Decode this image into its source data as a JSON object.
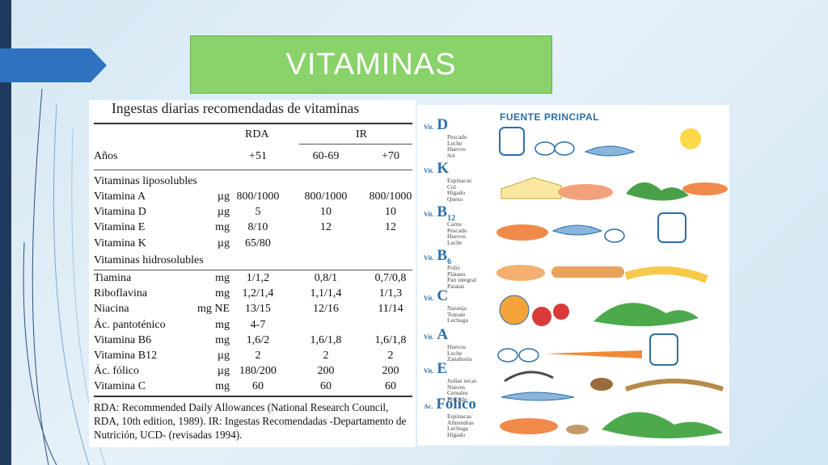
{
  "slide": {
    "title": "VITAMINAS"
  },
  "table": {
    "title": "Ingestas diarias recomendadas de vitaminas",
    "headers": {
      "rda": "RDA",
      "ir": "IR"
    },
    "age_row": {
      "label": "Años",
      "rda": "+51",
      "ir1": "60-69",
      "ir2": "+70"
    },
    "section_lipo": "Vitaminas liposolubles",
    "section_hidro": "Vitaminas hidrosolubles",
    "lipo_rows": [
      {
        "name": "Vitamina A",
        "unit": "µg",
        "rda": "800/1000",
        "ir1": "800/1000",
        "ir2": "800/1000"
      },
      {
        "name": "Vitamina D",
        "unit": "µg",
        "rda": "5",
        "ir1": "10",
        "ir2": "10"
      },
      {
        "name": "Vitamina E",
        "unit": "mg",
        "rda": "8/10",
        "ir1": "12",
        "ir2": "12"
      },
      {
        "name": "Vitamina K",
        "unit": "µg",
        "rda": "65/80",
        "ir1": "",
        "ir2": ""
      }
    ],
    "hidro_rows": [
      {
        "name": "Tiamina",
        "unit": "mg",
        "rda": "1/1,2",
        "ir1": "0,8/1",
        "ir2": "0,7/0,8"
      },
      {
        "name": "Riboflavina",
        "unit": "mg",
        "rda": "1,2/1,4",
        "ir1": "1,1/1,4",
        "ir2": "1/1,3"
      },
      {
        "name": "Niacina",
        "unit": "mg NE",
        "rda": "13/15",
        "ir1": "12/16",
        "ir2": "11/14"
      },
      {
        "name": "Ác. pantoténico",
        "unit": "mg",
        "rda": "4-7",
        "ir1": "",
        "ir2": ""
      },
      {
        "name": "Vitamina B6",
        "unit": "mg",
        "rda": "1,6/2",
        "ir1": "1,6/1,8",
        "ir2": "1,6/1,8"
      },
      {
        "name": "Vitamina B12",
        "unit": "µg",
        "rda": "2",
        "ir1": "2",
        "ir2": "2"
      },
      {
        "name": "Ác. fólico",
        "unit": "µg",
        "rda": "180/200",
        "ir1": "200",
        "ir2": "200"
      },
      {
        "name": "Vitamina C",
        "unit": "mg",
        "rda": "60",
        "ir1": "60",
        "ir2": "60"
      }
    ],
    "footnote": "RDA: Recommended Daily Allowances (National Research Council, RDA, 10th edition, 1989). IR: Ingestas Recomendadas -Departamento de Nutrición, UCD- (revisadas 1994)."
  },
  "sources": {
    "title": "FUENTE PRINCIPAL",
    "items": [
      {
        "prefix": "Vit.",
        "letter": "D",
        "sub": "",
        "foods": [
          "Pescado",
          "Leche",
          "Huevos",
          "Sol"
        ]
      },
      {
        "prefix": "Vit.",
        "letter": "K",
        "sub": "",
        "foods": [
          "Espinacas",
          "Col",
          "Hígado",
          "Queso"
        ]
      },
      {
        "prefix": "Vit.",
        "letter": "B",
        "sub": "12",
        "foods": [
          "Carne",
          "Pescado",
          "Huevos",
          "Leche"
        ]
      },
      {
        "prefix": "Vit.",
        "letter": "B",
        "sub": "6",
        "foods": [
          "Pollo",
          "Plátano",
          "Pan integral",
          "Patatas"
        ]
      },
      {
        "prefix": "Vit.",
        "letter": "C",
        "sub": "",
        "foods": [
          "Naranja",
          "Tomate",
          "Lechuga"
        ]
      },
      {
        "prefix": "Vit.",
        "letter": "A",
        "sub": "",
        "foods": [
          "Huevos",
          "Leche",
          "Zanahoria"
        ]
      },
      {
        "prefix": "Vit.",
        "letter": "E",
        "sub": "",
        "foods": [
          "Judías secas",
          "Nueces",
          "Cereales",
          "Pescado"
        ]
      },
      {
        "prefix": "Ac.",
        "letter": "Fólico",
        "sub": "",
        "foods": [
          "Espinacas",
          "Almendras",
          "Lechuga",
          "Hígado"
        ]
      }
    ]
  },
  "colors": {
    "title_bg": "#8ad26a",
    "accent": "#1f3a5e",
    "source_blue": "#2a6ea8"
  }
}
